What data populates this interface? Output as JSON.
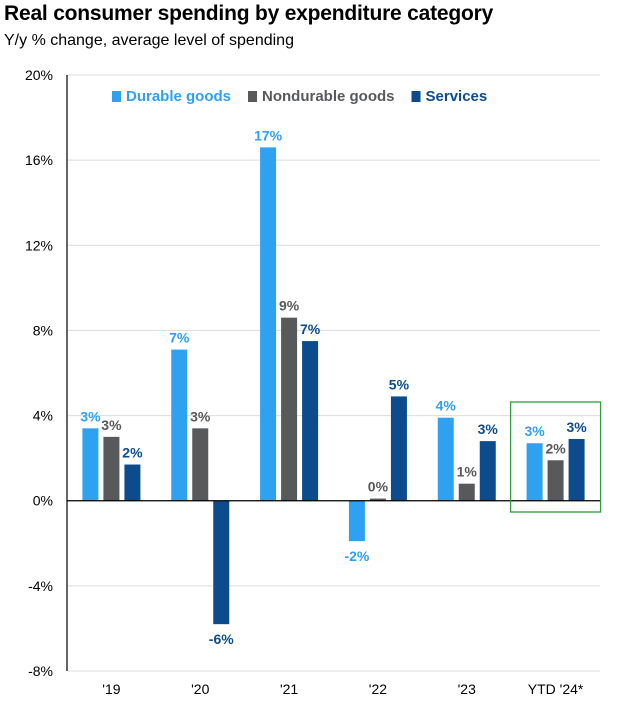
{
  "title": "Real consumer spending by expenditure category",
  "subtitle": "Y/y % change, average level of spending",
  "chart_data": {
    "type": "bar",
    "categories": [
      "'19",
      "'20",
      "'21",
      "'22",
      "'23",
      "YTD '24*"
    ],
    "ylim": [
      -8,
      20
    ],
    "yticks": [
      -8,
      -4,
      0,
      4,
      8,
      12,
      16,
      20
    ],
    "ytick_labels": [
      "-8%",
      "-4%",
      "0%",
      "4%",
      "8%",
      "12%",
      "16%",
      "20%"
    ],
    "grid": true,
    "legend_position": "top",
    "series": [
      {
        "name": "Durable goods",
        "color": "#2ea1f0",
        "values": [
          3.4,
          7.1,
          16.6,
          -1.9,
          3.9,
          2.7
        ],
        "labels": [
          "3%",
          "7%",
          "17%",
          "-2%",
          "4%",
          "3%"
        ]
      },
      {
        "name": "Nondurable goods",
        "color": "#58595b",
        "values": [
          3.0,
          3.4,
          8.6,
          0.1,
          0.8,
          1.9
        ],
        "labels": [
          "3%",
          "3%",
          "9%",
          "0%",
          "1%",
          "2%"
        ]
      },
      {
        "name": "Services",
        "color": "#0d4c8c",
        "values": [
          1.7,
          -5.8,
          7.5,
          4.9,
          2.8,
          2.9
        ],
        "labels": [
          "2%",
          "",
          "7%",
          "5%",
          "3%",
          "3%"
        ]
      }
    ],
    "annotations": [
      {
        "text": "-6%",
        "series": "Services",
        "category": "'20"
      }
    ],
    "highlight": {
      "category": "YTD '24*",
      "color": "#2e9e3e"
    }
  }
}
